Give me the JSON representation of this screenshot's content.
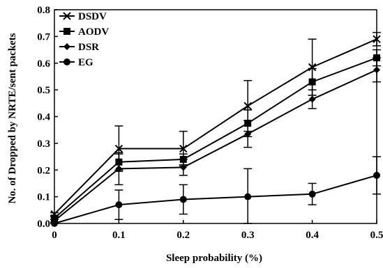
{
  "chart_data": {
    "type": "line",
    "xlabel": "Sleep probability (%)",
    "ylabel": "No. of Dropped by NRTE/sent packets",
    "xlim": [
      0,
      0.5
    ],
    "ylim": [
      0,
      0.8
    ],
    "x_ticks": [
      "0",
      "0.1",
      "0.2",
      "0.3",
      "0.4",
      "0.5"
    ],
    "y_ticks": [
      "0.0",
      "0.1",
      "0.2",
      "0.3",
      "0.4",
      "0.5",
      "0.6",
      "0.7",
      "0.8"
    ],
    "legend_position": "top-left",
    "grid": false,
    "x": [
      0,
      0.1,
      0.2,
      0.3,
      0.4,
      0.5
    ],
    "series": [
      {
        "name": "DSDV",
        "marker": "x",
        "values": [
          0.035,
          0.28,
          0.28,
          0.44,
          0.585,
          0.69
        ],
        "errors": [
          0.005,
          0.085,
          0.065,
          0.095,
          0.105,
          0.025
        ]
      },
      {
        "name": "AODV",
        "marker": "square",
        "values": [
          0.02,
          0.23,
          0.24,
          0.375,
          0.53,
          0.62
        ],
        "errors": [
          0.005,
          0.03,
          0.02,
          0.05,
          0.05,
          0.03
        ]
      },
      {
        "name": "DSR",
        "marker": "diamond",
        "values": [
          0.01,
          0.205,
          0.21,
          0.335,
          0.465,
          0.575
        ],
        "errors": [
          0.005,
          0.06,
          0.03,
          0.05,
          0.035,
          0.045
        ]
      },
      {
        "name": "EG",
        "marker": "circle",
        "values": [
          0.0,
          0.07,
          0.09,
          0.1,
          0.11,
          0.18
        ],
        "errors": [
          0.005,
          0.055,
          0.055,
          0.105,
          0.04,
          0.07
        ]
      }
    ]
  }
}
